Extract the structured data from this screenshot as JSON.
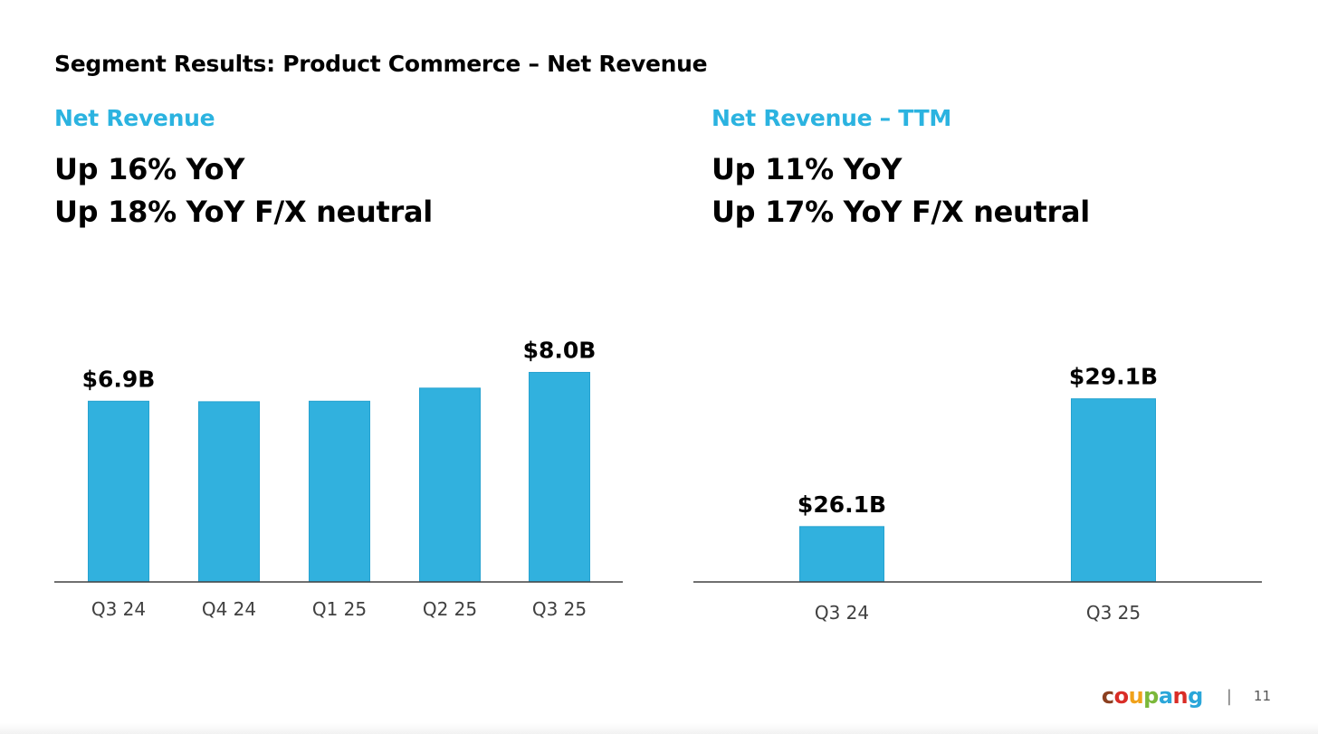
{
  "page_title": "Segment Results: Product Commerce – Net Revenue",
  "left": {
    "sub_label": "Net Revenue",
    "line1": "Up 16% YoY",
    "line2": "Up 18% YoY F/X neutral"
  },
  "right": {
    "sub_label": "Net Revenue – TTM",
    "line1": "Up 11% YoY",
    "line2": "Up 17% YoY F/X neutral"
  },
  "chart_data": [
    {
      "type": "bar",
      "title": "Net Revenue",
      "categories": [
        "Q3 24",
        "Q4 24",
        "Q1 25",
        "Q2 25",
        "Q3 25"
      ],
      "values": [
        6.9,
        6.88,
        6.9,
        7.4,
        8.0
      ],
      "unit": "$B",
      "data_labels": [
        "$6.9B",
        "",
        "",
        "",
        "$8.0B"
      ],
      "ylim": [
        0,
        8.5
      ],
      "color": "#31b1de"
    },
    {
      "type": "bar",
      "title": "Net Revenue – TTM",
      "categories": [
        "Q3 24",
        "Q3 25"
      ],
      "values": [
        26.1,
        29.1
      ],
      "unit": "$B",
      "data_labels": [
        "$26.1B",
        "$29.1B"
      ],
      "ylim": [
        24.8,
        29.9
      ],
      "color": "#31b1de"
    }
  ],
  "footer": {
    "logo_letters": [
      "c",
      "o",
      "u",
      "p",
      "a",
      "n",
      "g"
    ],
    "logo_colors": [
      "#8b3f1f",
      "#d92d27",
      "#f0a21b",
      "#7bb83a",
      "#2aa6d9",
      "#d92d27",
      "#2aa6d9"
    ],
    "divider": "|",
    "page_number": "11"
  }
}
